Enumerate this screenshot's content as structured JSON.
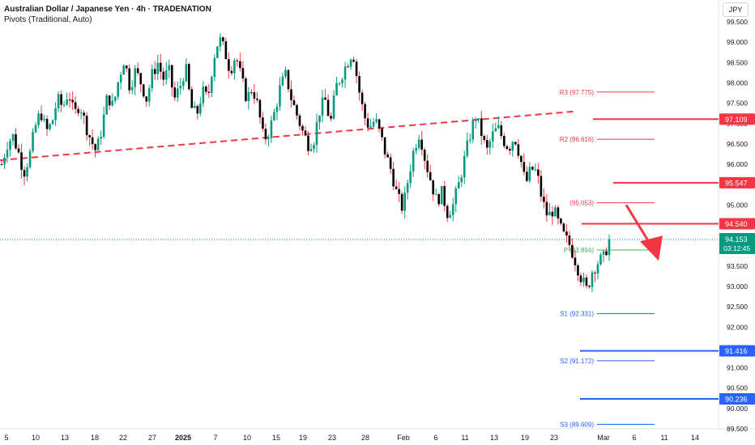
{
  "header": {
    "title": "Australian Dollar / Japanese Yen · 4h · TRADENATION",
    "indicator": "Pivots (Traditional, Auto)"
  },
  "currency_button": "JPY",
  "chart_data": {
    "type": "candlestick",
    "ylim": [
      89.5,
      99.5
    ],
    "y_ticks": [
      "99.500",
      "99.000",
      "98.500",
      "98.000",
      "97.500",
      "97.000",
      "96.500",
      "96.000",
      "95.500",
      "95.000",
      "94.500",
      "94.000",
      "93.500",
      "93.000",
      "92.500",
      "92.000",
      "91.500",
      "91.000",
      "90.500",
      "90.000",
      "89.500"
    ],
    "x_ticks": [
      "5",
      "10",
      "13",
      "18",
      "22",
      "27",
      "2025",
      "7",
      "10",
      "15",
      "19",
      "23",
      "28",
      "Feb",
      "6",
      "11",
      "13",
      "19",
      "23",
      "Mar",
      "6",
      "11",
      "14"
    ],
    "price_tags": [
      {
        "label": "97.109",
        "value": 97.109,
        "color": "#f23645"
      },
      {
        "label": "95.547",
        "value": 95.547,
        "color": "#f23645"
      },
      {
        "label": "94.540",
        "value": 94.54,
        "color": "#f23645"
      },
      {
        "label": "91.416",
        "value": 91.416,
        "color": "#2962ff"
      },
      {
        "label": "90.236",
        "value": 90.236,
        "color": "#2962ff"
      }
    ],
    "last_price": {
      "price": "94.153",
      "countdown": "03:12:45",
      "value": 94.153,
      "color": "#089981"
    },
    "pivots": [
      {
        "label": "R3 (97.775)",
        "value": 97.775,
        "color": "#f23645"
      },
      {
        "label": "R2 (96.616)",
        "value": 96.616,
        "color": "#f23645"
      },
      {
        "label": "(95.053)",
        "value": 95.053,
        "color": "#f23645"
      },
      {
        "label": "P (93.894)",
        "value": 93.894,
        "color": "#4caf50"
      },
      {
        "label": "S1 (92.331)",
        "value": 92.331,
        "color": "#2962ff"
      },
      {
        "label": "S2 (91.172)",
        "value": 91.172,
        "color": "#2962ff"
      },
      {
        "label": "S3 (89.609)",
        "value": 89.609,
        "color": "#2962ff"
      }
    ],
    "trendline": {
      "from": 96.1,
      "to": 97.3,
      "color": "#f23645",
      "style": "dashed"
    },
    "arrow": {
      "direction": "down",
      "from": 95.0,
      "to": 93.75,
      "color": "#f23645"
    },
    "price_path": [
      96.0,
      96.5,
      96.7,
      96.3,
      95.8,
      96.2,
      96.9,
      97.3,
      96.8,
      97.0,
      97.6,
      97.4,
      97.8,
      97.2,
      97.5,
      97.0,
      96.6,
      96.3,
      96.9,
      97.7,
      97.4,
      98.1,
      98.6,
      97.9,
      98.3,
      98.0,
      97.6,
      98.2,
      98.5,
      98.1,
      98.3,
      97.6,
      97.9,
      98.4,
      97.4,
      97.2,
      97.8,
      97.6,
      98.6,
      99.1,
      98.8,
      98.3,
      98.7,
      98.1,
      97.6,
      97.9,
      97.4,
      96.6,
      96.8,
      97.3,
      97.9,
      98.2,
      97.6,
      97.2,
      96.8,
      96.5,
      96.6,
      97.3,
      97.6,
      97.0,
      97.9,
      98.2,
      98.5,
      98.8,
      97.9,
      97.2,
      96.9,
      97.1,
      96.7,
      96.2,
      95.8,
      95.2,
      94.9,
      95.7,
      96.4,
      96.8,
      96.1,
      95.6,
      95.1,
      95.3,
      94.8,
      95.0,
      95.5,
      96.1,
      96.7,
      97.2,
      96.8,
      96.3,
      96.7,
      96.9,
      96.6,
      96.4,
      96.7,
      96.2,
      95.5,
      95.9,
      95.8,
      95.1,
      94.7,
      94.9,
      94.5,
      94.2,
      94.0,
      93.6,
      93.2,
      92.9,
      93.4,
      93.6,
      93.7,
      94.15
    ]
  }
}
